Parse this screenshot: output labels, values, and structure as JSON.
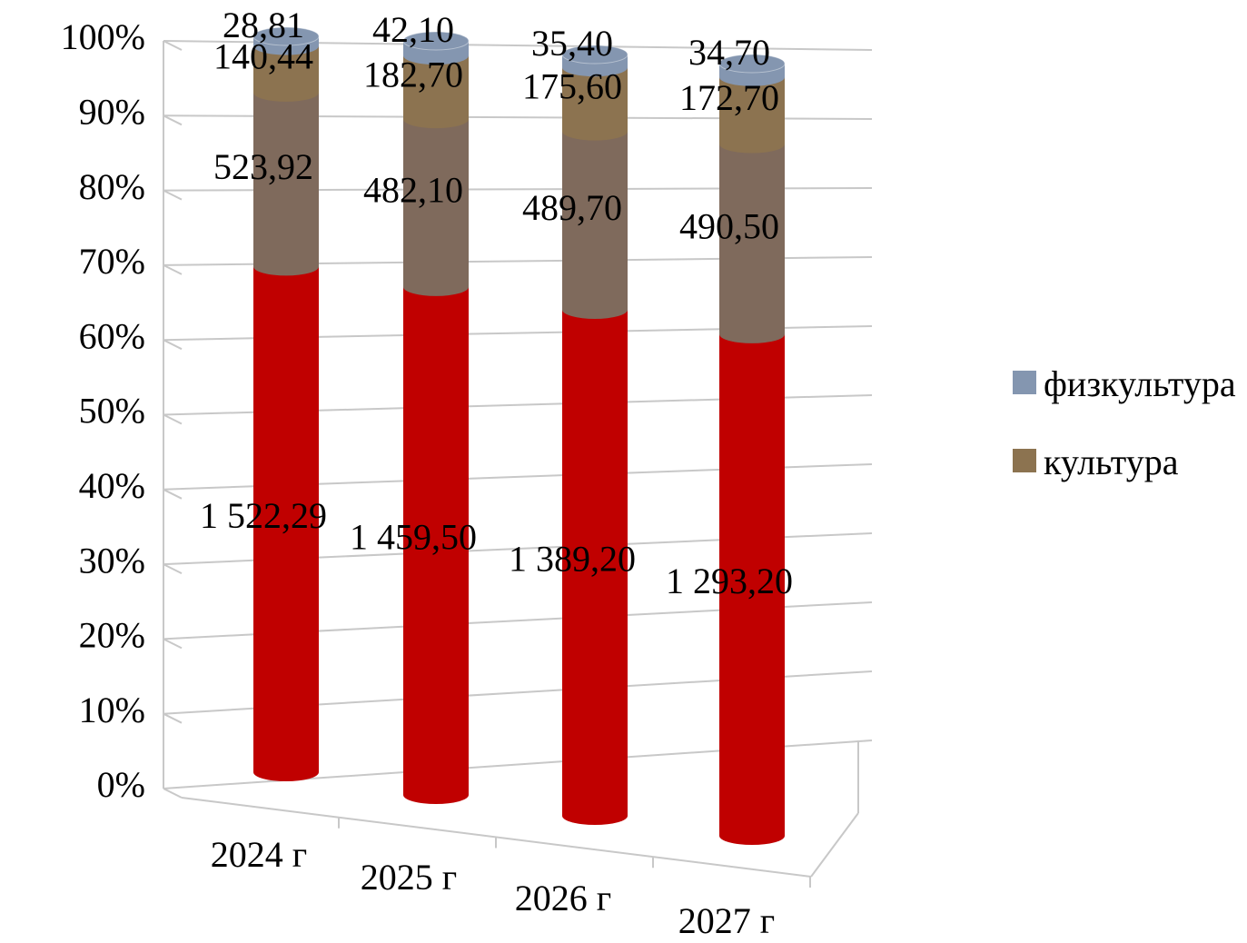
{
  "chart_data": {
    "type": "bar3d",
    "stacking": "percent",
    "categories": [
      "2024 г",
      "2025 г",
      "2026 г",
      "2027 г"
    ],
    "series": [
      {
        "color": "#c00000",
        "values": [
          1522.29,
          1459.5,
          1389.2,
          1293.2
        ],
        "value_labels": [
          "1 522,29",
          "1 459,50",
          "1 389,20",
          "1 293,20"
        ]
      },
      {
        "color": "#7f6a5c",
        "values": [
          523.92,
          482.1,
          489.7,
          490.5
        ],
        "value_labels": [
          "523,92",
          "482,10",
          "489,70",
          "490,50"
        ]
      },
      {
        "name": "культура",
        "color": "#8c7350",
        "values": [
          140.44,
          182.7,
          175.6,
          172.7
        ],
        "value_labels": [
          "140,44",
          "182,70",
          "175,60",
          "172,70"
        ]
      },
      {
        "name": "физкультура",
        "color": "#8496b0",
        "values": [
          28.81,
          42.1,
          35.4,
          34.7
        ],
        "value_labels": [
          "28,81",
          "42,10",
          "35,40",
          "34,70"
        ]
      }
    ],
    "ylim": [
      0,
      100
    ],
    "yticks": [
      {
        "value": 0,
        "label": "0%"
      },
      {
        "value": 10,
        "label": "10%"
      },
      {
        "value": 20,
        "label": "20%"
      },
      {
        "value": 30,
        "label": "30%"
      },
      {
        "value": 40,
        "label": "40%"
      },
      {
        "value": 50,
        "label": "50%"
      },
      {
        "value": 60,
        "label": "60%"
      },
      {
        "value": 70,
        "label": "70%"
      },
      {
        "value": 80,
        "label": "80%"
      },
      {
        "value": 90,
        "label": "90%"
      },
      {
        "value": 100,
        "label": "100%"
      }
    ],
    "grid": true,
    "legend": "right"
  }
}
